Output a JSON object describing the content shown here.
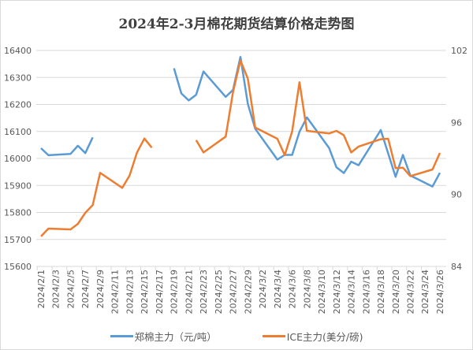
{
  "chart_data": {
    "type": "line",
    "title": "2024年2-3月棉花期货结算价格走势图",
    "x_tick_labels": [
      "2024/2/1",
      "2024/2/3",
      "2024/2/5",
      "2024/2/7",
      "2024/2/9",
      "2024/2/11",
      "2024/2/13",
      "2024/2/15",
      "2024/2/17",
      "2024/2/19",
      "2024/2/21",
      "2024/2/23",
      "2024/2/25",
      "2024/2/27",
      "2024/2/29",
      "2024/3/2",
      "2024/3/4",
      "2024/3/6",
      "2024/3/8",
      "2024/3/10",
      "2024/3/12",
      "2024/3/14",
      "2024/3/16",
      "2024/3/18",
      "2024/3/20",
      "2024/3/22",
      "2024/3/24",
      "2024/3/26"
    ],
    "x_range": [
      "2024/2/1",
      "2024/3/26"
    ],
    "y_left": {
      "ticks": [
        15600,
        15700,
        15800,
        15900,
        16000,
        16100,
        16200,
        16300,
        16400
      ],
      "range": [
        15600,
        16400
      ]
    },
    "y_right": {
      "ticks": [
        84,
        90,
        96,
        102
      ],
      "range": [
        84,
        102
      ]
    },
    "grid": true,
    "legend_position": "bottom",
    "series": [
      {
        "name": "郑棉主力（元/吨）",
        "axis": "left",
        "color": "#5b9bd5",
        "points": [
          [
            "2024/2/1",
            16038
          ],
          [
            "2024/2/2",
            16012
          ],
          [
            "2024/2/5",
            16017
          ],
          [
            "2024/2/6",
            16047
          ],
          [
            "2024/2/7",
            16020
          ],
          [
            "2024/2/8",
            16078
          ],
          null,
          [
            "2024/2/19",
            16334
          ],
          [
            "2024/2/20",
            16241
          ],
          [
            "2024/2/21",
            16215
          ],
          [
            "2024/2/22",
            16236
          ],
          [
            "2024/2/23",
            16322
          ],
          [
            "2024/2/26",
            16228
          ],
          [
            "2024/2/27",
            16254
          ],
          [
            "2024/2/28",
            16376
          ],
          [
            "2024/2/29",
            16202
          ],
          [
            "2024/3/1",
            16110
          ],
          [
            "2024/3/4",
            15996
          ],
          [
            "2024/3/5",
            16013
          ],
          [
            "2024/3/6",
            16013
          ],
          [
            "2024/3/7",
            16099
          ],
          [
            "2024/3/8",
            16152
          ],
          [
            "2024/3/11",
            16039
          ],
          [
            "2024/3/12",
            15967
          ],
          [
            "2024/3/13",
            15946
          ],
          [
            "2024/3/14",
            15988
          ],
          [
            "2024/3/15",
            15975
          ],
          [
            "2024/3/18",
            16105
          ],
          [
            "2024/3/20",
            15932
          ],
          [
            "2024/3/21",
            16013
          ],
          [
            "2024/3/22",
            15937
          ],
          [
            "2024/3/25",
            15896
          ],
          [
            "2024/3/26",
            15947
          ]
        ]
      },
      {
        "name": "ICE主力(美分/磅)",
        "axis": "right",
        "color": "#ed7d31",
        "points": [
          [
            "2024/2/1",
            86.5
          ],
          [
            "2024/2/2",
            87.15
          ],
          [
            "2024/2/5",
            87.09
          ],
          [
            "2024/2/6",
            87.55
          ],
          [
            "2024/2/7",
            88.47
          ],
          [
            "2024/2/8",
            89.12
          ],
          [
            "2024/2/9",
            91.8
          ],
          [
            "2024/2/12",
            90.55
          ],
          [
            "2024/2/13",
            91.58
          ],
          [
            "2024/2/14",
            93.5
          ],
          [
            "2024/2/15",
            94.66
          ],
          [
            "2024/2/16",
            93.9
          ],
          null,
          [
            "2024/2/22",
            94.53
          ],
          [
            "2024/2/23",
            93.5
          ],
          [
            "2024/2/26",
            94.82
          ],
          [
            "2024/2/27",
            98.54
          ],
          [
            "2024/2/28",
            101.17
          ],
          [
            "2024/2/29",
            99.64
          ],
          [
            "2024/3/1",
            95.58
          ],
          [
            "2024/3/4",
            94.64
          ],
          [
            "2024/3/5",
            93.28
          ],
          [
            "2024/3/6",
            95.25
          ],
          [
            "2024/3/7",
            99.35
          ],
          [
            "2024/3/8",
            95.3
          ],
          [
            "2024/3/11",
            95.08
          ],
          [
            "2024/3/12",
            95.3
          ],
          [
            "2024/3/13",
            94.93
          ],
          [
            "2024/3/14",
            93.5
          ],
          [
            "2024/3/15",
            93.99
          ],
          [
            "2024/3/18",
            94.6
          ],
          [
            "2024/3/19",
            94.64
          ],
          [
            "2024/3/20",
            92.19
          ],
          [
            "2024/3/21",
            92.23
          ],
          [
            "2024/3/22",
            91.53
          ],
          [
            "2024/3/25",
            92.08
          ],
          [
            "2024/3/26",
            93.46
          ]
        ]
      }
    ]
  }
}
